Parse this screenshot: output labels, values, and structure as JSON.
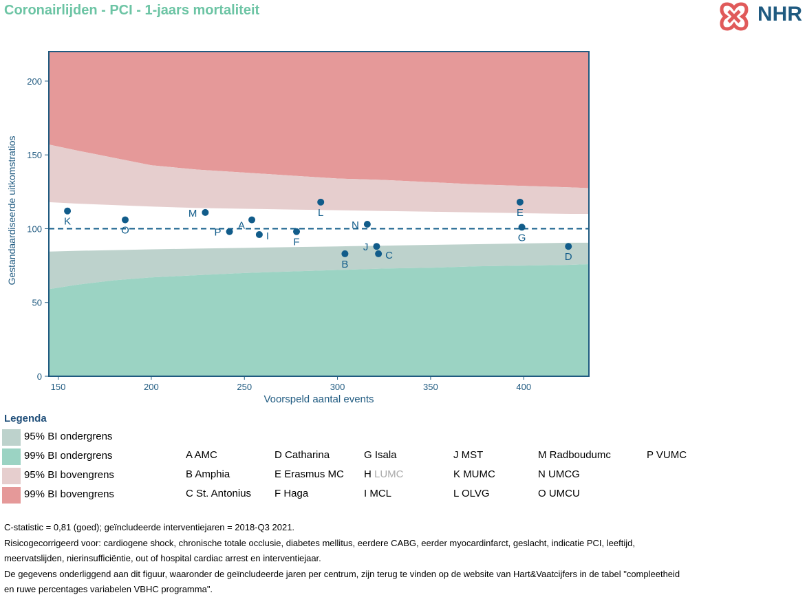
{
  "title": "Coronairlijden - PCI - 1-jaars mortaliteit",
  "logo": {
    "text": "NHR",
    "icon": "nhr-cross-icon"
  },
  "colors": {
    "title": "#6cc4a4",
    "axis": "#1f5a80",
    "upper99": "#e59999",
    "upper95": "#e6cece",
    "lower95": "#bdd2cc",
    "lower99": "#9bd3c3",
    "point": "#115c8a",
    "muted": "#aaaaaa"
  },
  "chart_data": {
    "type": "scatter",
    "xlabel": "Voorspeld aantal events",
    "ylabel": "Gestandaardiseerde uitkomstratios",
    "xlim": [
      145,
      435
    ],
    "ylim": [
      0,
      220
    ],
    "xticks": [
      150,
      200,
      250,
      300,
      350,
      400
    ],
    "yticks": [
      0,
      50,
      100,
      150,
      200
    ],
    "reference_line": 100,
    "bands": {
      "x": [
        145,
        160,
        180,
        200,
        225,
        250,
        275,
        300,
        325,
        350,
        375,
        400,
        425,
        435
      ],
      "upper99": [
        157,
        153,
        148,
        143,
        140,
        138,
        136,
        134,
        133,
        131.5,
        130,
        129,
        128,
        127.5
      ],
      "upper95": [
        118,
        117,
        116,
        115,
        114,
        113.5,
        113,
        112.5,
        112,
        111.5,
        111,
        110.5,
        110,
        110
      ],
      "lower95": [
        84.5,
        85,
        85.5,
        86,
        86.5,
        87,
        87.5,
        88,
        88.5,
        89,
        89.5,
        90,
        90.5,
        90.5
      ],
      "lower99": [
        59,
        62,
        65,
        67,
        68.5,
        70,
        71,
        72,
        73,
        73.5,
        74.5,
        75,
        75.5,
        76
      ]
    },
    "points": [
      {
        "label": "K",
        "x": 155,
        "y": 112,
        "lpos": "below"
      },
      {
        "label": "O",
        "x": 186,
        "y": 106,
        "lpos": "below"
      },
      {
        "label": "M",
        "x": 229,
        "y": 111,
        "lpos": "left"
      },
      {
        "label": "P",
        "x": 242,
        "y": 98,
        "lpos": "left"
      },
      {
        "label": "A",
        "x": 254,
        "y": 106,
        "lpos": "below-left"
      },
      {
        "label": "I",
        "x": 258,
        "y": 96,
        "lpos": "right"
      },
      {
        "label": "F",
        "x": 278,
        "y": 98,
        "lpos": "below"
      },
      {
        "label": "L",
        "x": 291,
        "y": 118,
        "lpos": "below"
      },
      {
        "label": "B",
        "x": 304,
        "y": 83,
        "lpos": "below"
      },
      {
        "label": "N",
        "x": 316,
        "y": 103,
        "lpos": "left"
      },
      {
        "label": "J",
        "x": 321,
        "y": 88,
        "lpos": "left"
      },
      {
        "label": "C",
        "x": 322,
        "y": 83,
        "lpos": "right"
      },
      {
        "label": "E",
        "x": 398,
        "y": 118,
        "lpos": "below"
      },
      {
        "label": "G",
        "x": 399,
        "y": 101,
        "lpos": "below"
      },
      {
        "label": "D",
        "x": 424,
        "y": 88,
        "lpos": "below"
      }
    ]
  },
  "legend": {
    "title": "Legenda",
    "bands": [
      {
        "label": "95% BI ondergrens",
        "color": "#bdd2cc"
      },
      {
        "label": "99% BI ondergrens",
        "color": "#9bd3c3"
      },
      {
        "label": "95% BI bovengrens",
        "color": "#e6cece"
      },
      {
        "label": "99% BI bovengrens",
        "color": "#e59999"
      }
    ],
    "centers": [
      {
        "code": "A",
        "name": "AMC"
      },
      {
        "code": "B",
        "name": "Amphia"
      },
      {
        "code": "C",
        "name": "St. Antonius"
      },
      {
        "code": "D",
        "name": "Catharina"
      },
      {
        "code": "E",
        "name": "Erasmus MC"
      },
      {
        "code": "F",
        "name": "Haga"
      },
      {
        "code": "G",
        "name": "Isala"
      },
      {
        "code": "H",
        "name": "LUMC",
        "muted": true
      },
      {
        "code": "I",
        "name": "MCL"
      },
      {
        "code": "J",
        "name": "MST"
      },
      {
        "code": "K",
        "name": "MUMC"
      },
      {
        "code": "L",
        "name": "OLVG"
      },
      {
        "code": "M",
        "name": "Radboudumc"
      },
      {
        "code": "N",
        "name": "UMCG"
      },
      {
        "code": "O",
        "name": "UMCU"
      },
      {
        "code": "P",
        "name": "VUMC"
      }
    ]
  },
  "footnotes": [
    "C-statistic =  0,81 (goed); geïncludeerde interventiejaren = 2018-Q3 2021.",
    "Risicogecorrigeerd voor: cardiogene shock, chronische totale occlusie, diabetes mellitus, eerdere CABG, eerder myocardinfarct, geslacht, indicatie PCI, leeftijd,",
    "meervatslijden, nierinsufficiëntie, out of hospital cardiac arrest en interventiejaar.",
    "De gegevens onderliggend aan dit figuur, waaronder de geïncludeerde jaren per centrum, zijn terug te vinden op de website van Hart&Vaatcijfers in de tabel \"compleetheid",
    "en ruwe percentages variabelen VBHC programma\"."
  ]
}
